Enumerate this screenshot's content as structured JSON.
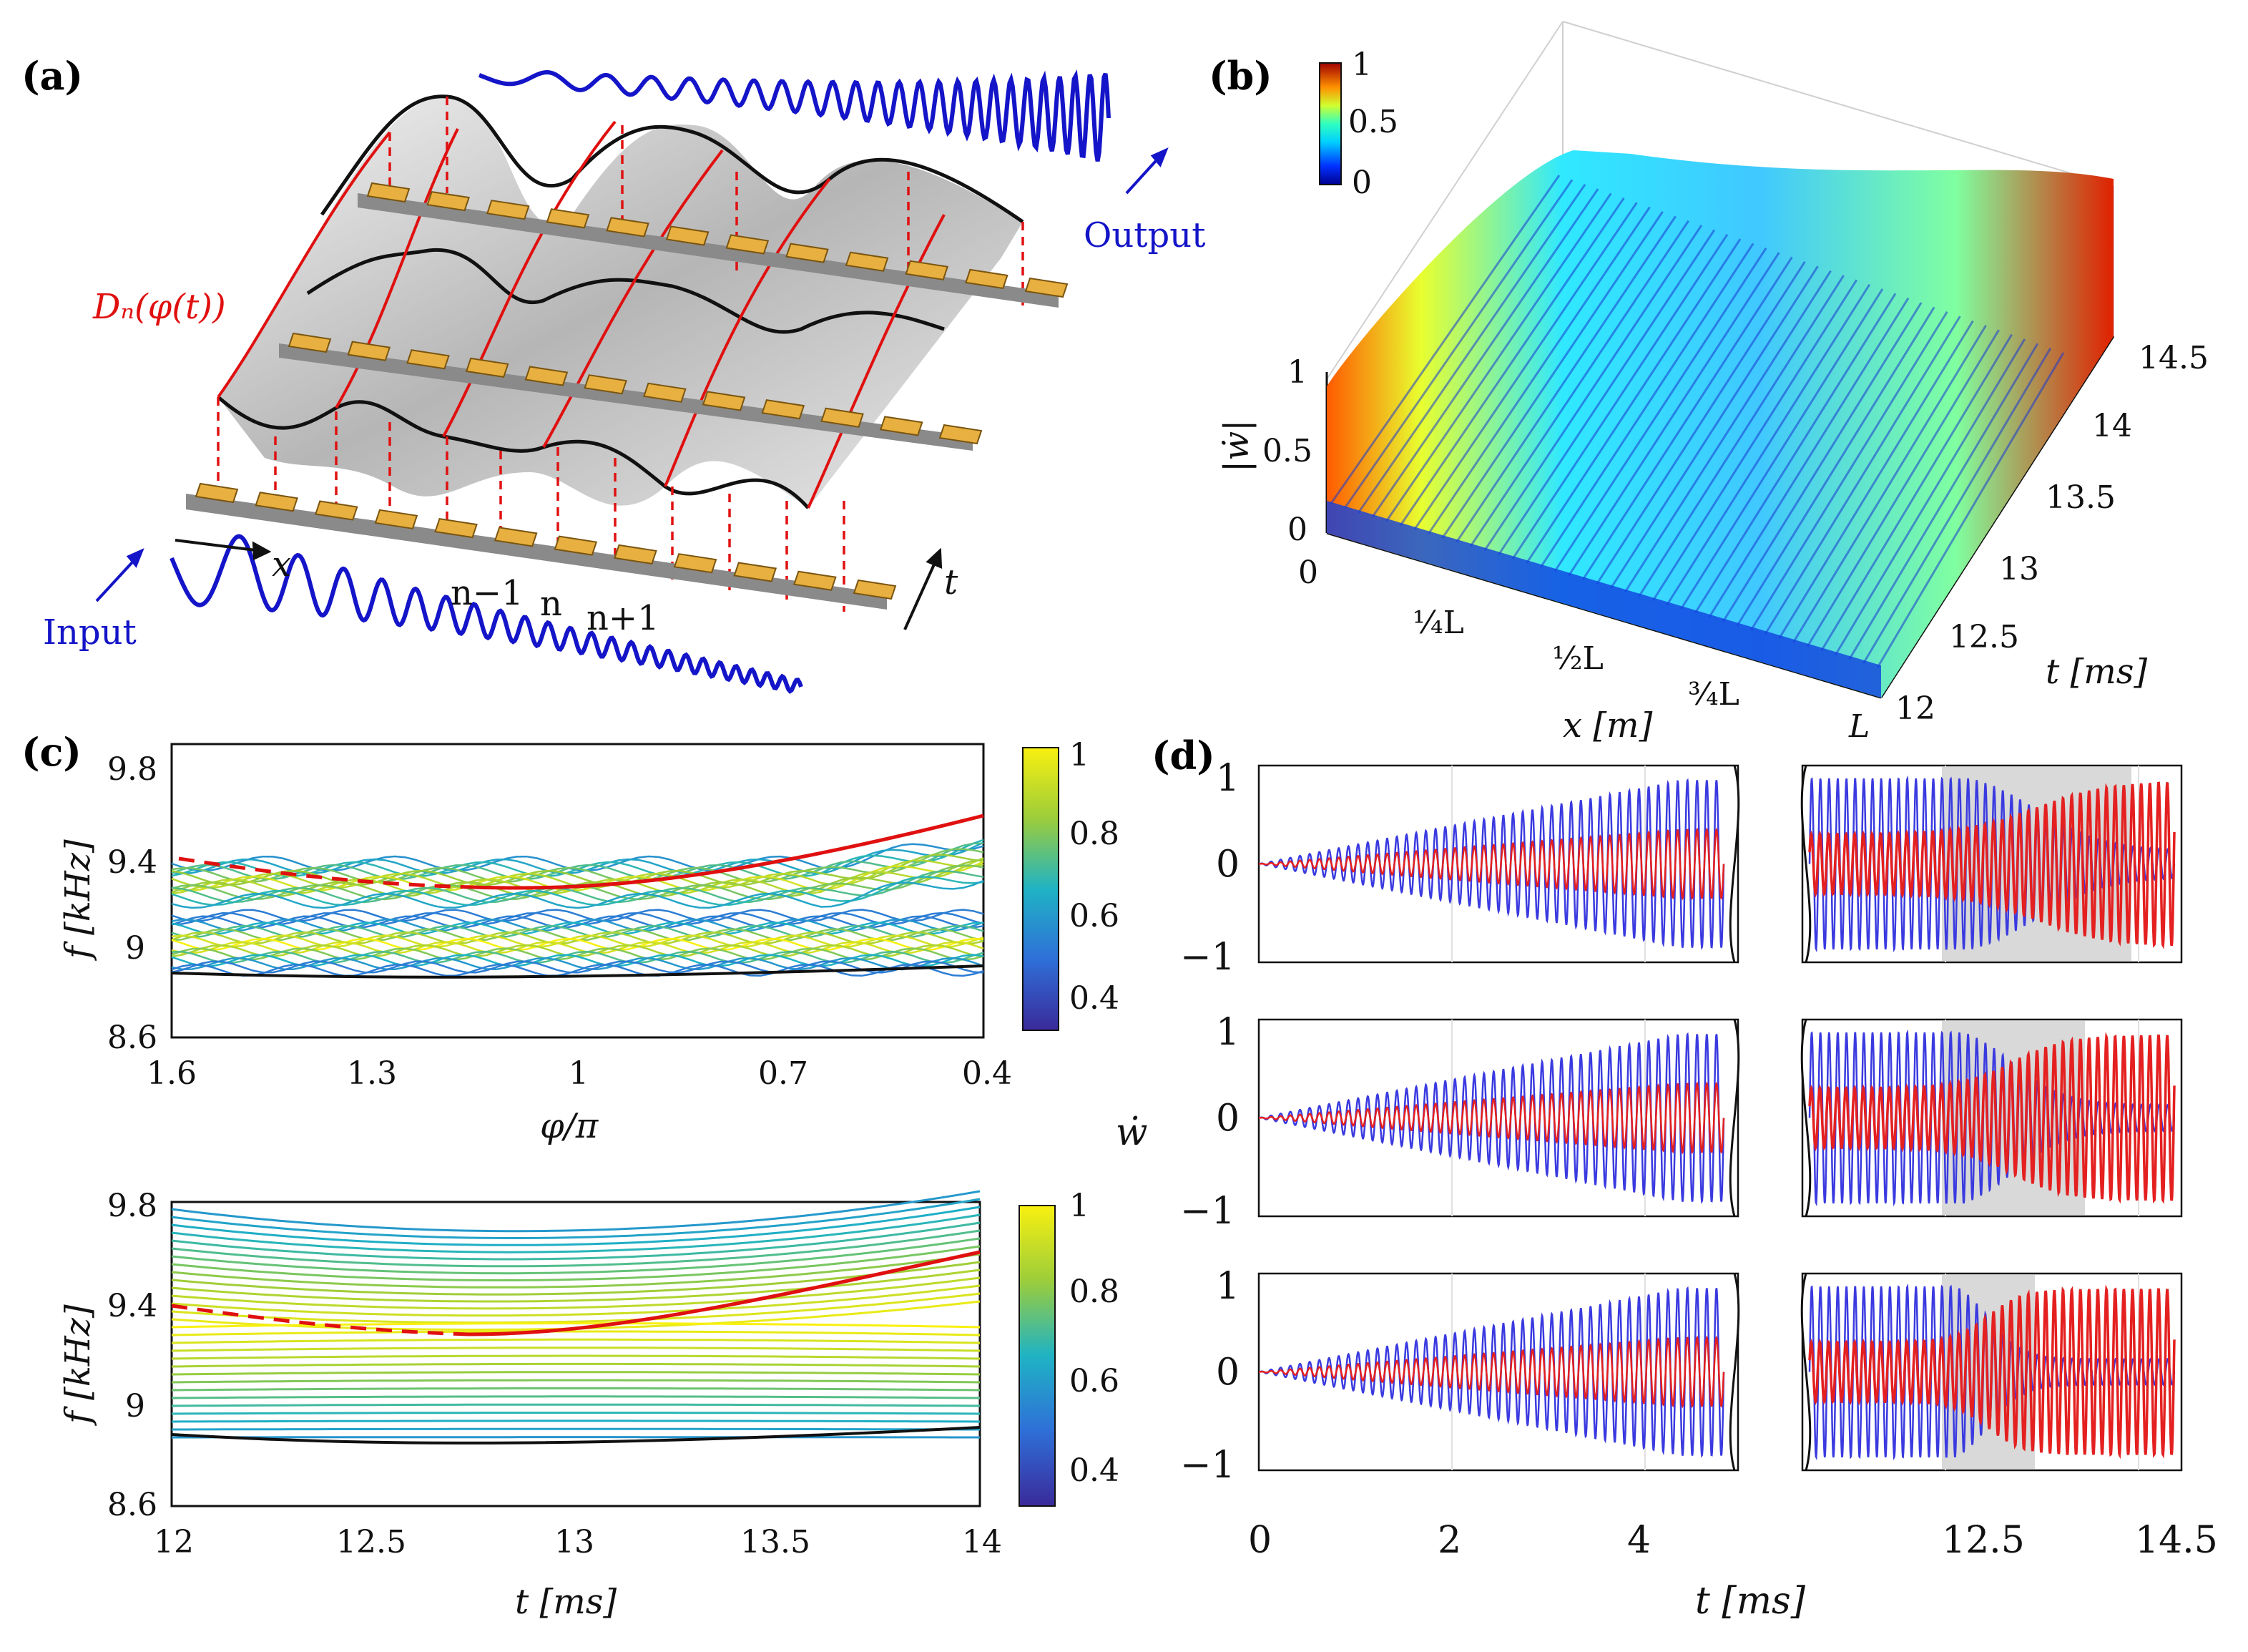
{
  "panels": {
    "a": {
      "label": "(a)",
      "input_label": "Input",
      "output_label": "Output",
      "func_label": "Dₙ(φ(t))",
      "x_label": "x",
      "t_label": "t",
      "n_labels": [
        "n−1",
        "n",
        "n+1"
      ]
    },
    "b": {
      "label": "(b)",
      "colorbar_ticks": [
        "1",
        "0.5",
        "0"
      ],
      "z_ticks": [
        "1",
        "0.5",
        "0"
      ],
      "z_label": "|ẇ|",
      "x_ticks": [
        "0",
        "¼L",
        "½L",
        "¾L",
        "L"
      ],
      "x_label": "x [m]",
      "t_ticks": [
        "12",
        "12.5",
        "13",
        "13.5",
        "14",
        "14.5"
      ],
      "t_label": "t [ms]"
    },
    "c": {
      "label": "(c)",
      "top": {
        "y_ticks": [
          "9.8",
          "9.4",
          "9",
          "8.6"
        ],
        "x_ticks": [
          "1.6",
          "1.3",
          "1",
          "0.7",
          "0.4"
        ],
        "x_label": "φ/π",
        "y_label": "f [kHz]",
        "colorbar_ticks": [
          "1",
          "0.8",
          "0.6",
          "0.4"
        ]
      },
      "bottom": {
        "y_ticks": [
          "9.8",
          "9.4",
          "9",
          "8.6"
        ],
        "x_ticks": [
          "12",
          "12.5",
          "13",
          "13.5",
          "14"
        ],
        "x_label": "t [ms]",
        "y_label": "f [kHz]",
        "colorbar_ticks": [
          "1",
          "0.8",
          "0.6",
          "0.4"
        ]
      }
    },
    "d": {
      "label": "(d)",
      "y_label": "ẇ",
      "y_ticks": [
        "1",
        "0",
        "−1"
      ],
      "x_ticks_left": [
        "0",
        "2",
        "4"
      ],
      "x_ticks_right": [
        "12.5",
        "14.5"
      ],
      "x_label": "t [ms]"
    }
  },
  "colors": {
    "blue": "#1414c8",
    "red": "#e01010",
    "wave_blue": "#3a3ae0",
    "wave_red": "#e42020",
    "highlight": "#d9d9d9"
  }
}
